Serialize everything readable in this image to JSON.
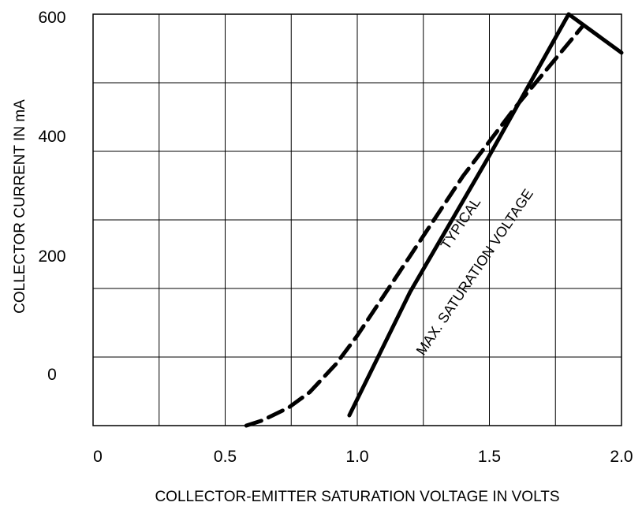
{
  "chart_data": {
    "type": "line",
    "xlabel": "COLLECTOR-EMITTER SATURATION VOLTAGE IN VOLTS",
    "ylabel": "COLLECTOR CURRENT IN mA",
    "xlim": [
      0,
      2.0
    ],
    "ylim": [
      -200,
      600
    ],
    "x_tick_labels": [
      "0",
      "0.5",
      "1.0",
      "1.5",
      "2.0"
    ],
    "y_tick_labels": [
      "600",
      "400",
      "200",
      "0"
    ],
    "grid": true,
    "series": [
      {
        "name": "TYPICAL",
        "style": "dashed",
        "x": [
          0.58,
          0.64,
          0.74,
          0.82,
          0.92,
          1.0,
          1.2,
          1.4,
          1.6,
          1.85
        ],
        "y": [
          -200,
          -190,
          -165,
          -135,
          -80,
          -25,
          130,
          285,
          420,
          575
        ]
      },
      {
        "name": "MAX. SATURATION VOLTAGE",
        "style": "solid",
        "x": [
          0.97,
          1.2,
          1.5,
          1.8,
          2.0
        ],
        "y": [
          -180,
          60,
          325,
          600,
          525
        ]
      }
    ]
  }
}
